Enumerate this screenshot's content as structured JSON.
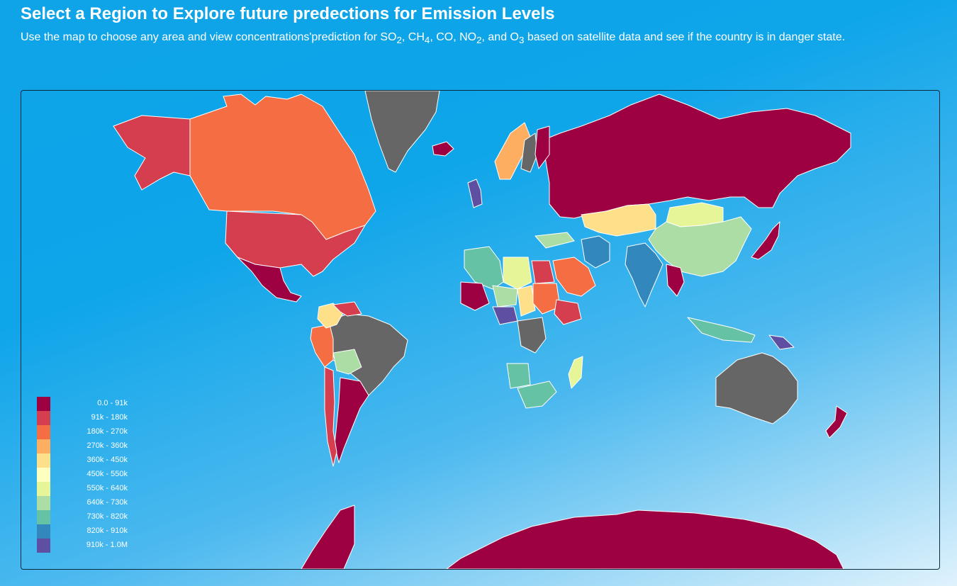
{
  "header": {
    "title": "Select a Region to Explore future predections for Emission Levels",
    "subtitle_parts": [
      "Use the map to choose any area and view concentrations'prediction for SO",
      "2",
      ", CH",
      "4",
      ", CO, NO",
      "2",
      ", and O",
      "3",
      " based on satellite data and see if the country is in danger state."
    ]
  },
  "legend": {
    "items": [
      {
        "label": "0.0 - 91k",
        "color": "#9e0142"
      },
      {
        "label": "91k - 180k",
        "color": "#d53e4f"
      },
      {
        "label": "180k - 270k",
        "color": "#f46d43"
      },
      {
        "label": "270k - 360k",
        "color": "#fdae61"
      },
      {
        "label": "360k - 450k",
        "color": "#fee08b"
      },
      {
        "label": "450k - 550k",
        "color": "#ffffbf"
      },
      {
        "label": "550k - 640k",
        "color": "#e6f598"
      },
      {
        "label": "640k - 730k",
        "color": "#abdda4"
      },
      {
        "label": "730k - 820k",
        "color": "#66c2a5"
      },
      {
        "label": "820k - 910k",
        "color": "#3288bd"
      },
      {
        "label": "910k - 1.0M",
        "color": "#5e4fa2"
      }
    ]
  },
  "map": {
    "no_data_color": "#666666",
    "border_color": "#ffffff",
    "regions": [
      {
        "name": "Greenland",
        "color": "#666666"
      },
      {
        "name": "Canada",
        "color": "#f46d43"
      },
      {
        "name": "Alaska",
        "color": "#d53e4f"
      },
      {
        "name": "United States",
        "color": "#d53e4f"
      },
      {
        "name": "Mexico",
        "color": "#9e0142"
      },
      {
        "name": "Brazil",
        "color": "#666666"
      },
      {
        "name": "Argentina",
        "color": "#9e0142"
      },
      {
        "name": "Peru",
        "color": "#f46d43"
      },
      {
        "name": "Colombia",
        "color": "#fee08b"
      },
      {
        "name": "Venezuela",
        "color": "#d53e4f"
      },
      {
        "name": "Bolivia",
        "color": "#abdda4"
      },
      {
        "name": "Chile",
        "color": "#d53e4f"
      },
      {
        "name": "Russia",
        "color": "#9e0142"
      },
      {
        "name": "Kazakhstan",
        "color": "#fee08b"
      },
      {
        "name": "Mongolia",
        "color": "#e6f598"
      },
      {
        "name": "China",
        "color": "#abdda4"
      },
      {
        "name": "India",
        "color": "#3288bd"
      },
      {
        "name": "Iran",
        "color": "#3288bd"
      },
      {
        "name": "Saudi Arabia",
        "color": "#f46d43"
      },
      {
        "name": "Algeria",
        "color": "#66c2a5"
      },
      {
        "name": "Libya",
        "color": "#e6f598"
      },
      {
        "name": "Egypt",
        "color": "#d53e4f"
      },
      {
        "name": "Mali",
        "color": "#9e0142"
      },
      {
        "name": "Niger",
        "color": "#abdda4"
      },
      {
        "name": "Nigeria",
        "color": "#5e4fa2"
      },
      {
        "name": "Chad",
        "color": "#fee08b"
      },
      {
        "name": "Sudan",
        "color": "#f46d43"
      },
      {
        "name": "Ethiopia",
        "color": "#d53e4f"
      },
      {
        "name": "DR Congo",
        "color": "#666666"
      },
      {
        "name": "Angola",
        "color": "#66c2a5"
      },
      {
        "name": "South Africa",
        "color": "#66c2a5"
      },
      {
        "name": "Madagascar",
        "color": "#e6f598"
      },
      {
        "name": "Australia",
        "color": "#666666"
      },
      {
        "name": "Indonesia",
        "color": "#66c2a5"
      },
      {
        "name": "Papua New Guinea",
        "color": "#5e4fa2"
      },
      {
        "name": "Japan",
        "color": "#9e0142"
      },
      {
        "name": "Myanmar",
        "color": "#9e0142"
      },
      {
        "name": "New Zealand",
        "color": "#9e0142"
      },
      {
        "name": "Norway",
        "color": "#fdae61"
      },
      {
        "name": "Sweden",
        "color": "#666666"
      },
      {
        "name": "Finland",
        "color": "#9e0142"
      },
      {
        "name": "Iceland",
        "color": "#9e0142"
      },
      {
        "name": "Turkey",
        "color": "#abdda4"
      },
      {
        "name": "United Kingdom",
        "color": "#5e4fa2"
      },
      {
        "name": "Antarctica",
        "color": "#9e0142"
      }
    ]
  }
}
